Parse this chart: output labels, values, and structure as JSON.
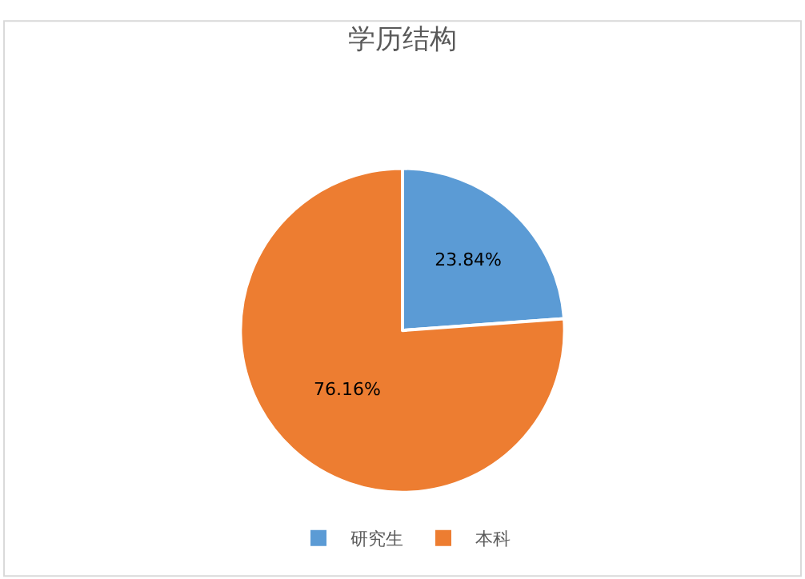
{
  "chart_data": {
    "type": "pie",
    "title": "学历结构",
    "categories": [
      "研究生",
      "本科"
    ],
    "values": [
      23.84,
      76.16
    ],
    "value_labels": [
      "23.84%",
      "76.16%"
    ],
    "colors": [
      "#5b9bd5",
      "#ed7d31"
    ],
    "legend": "bottom"
  }
}
